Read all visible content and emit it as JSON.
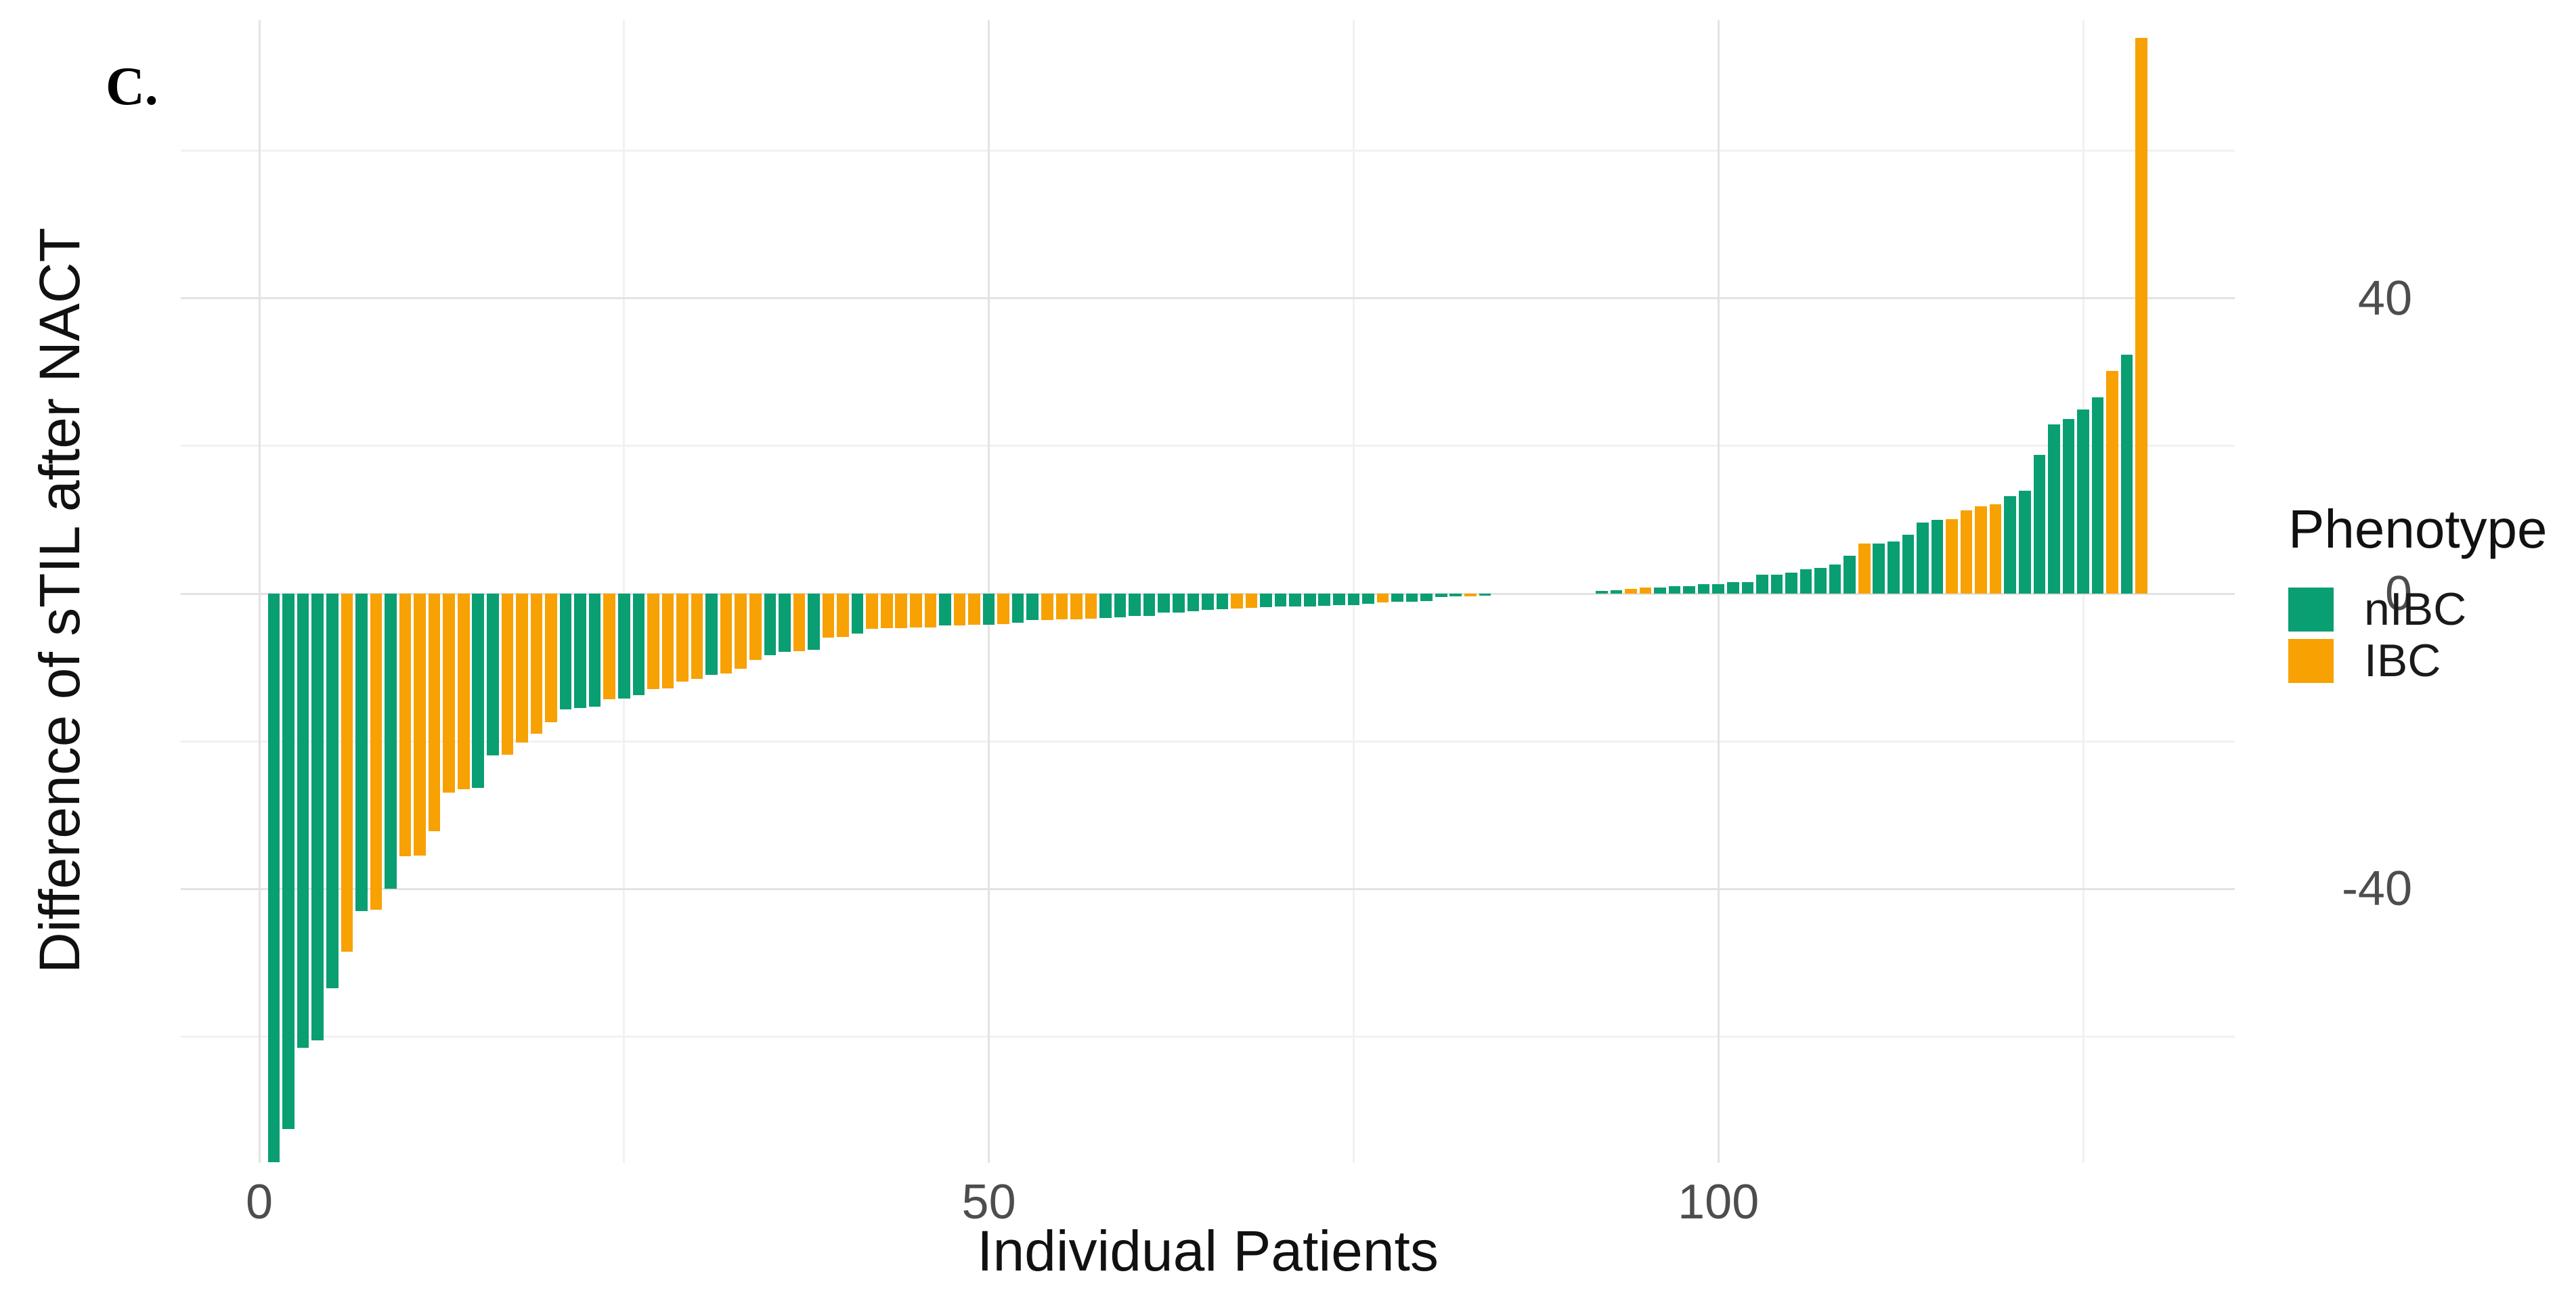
{
  "figure": {
    "panel_label": "C."
  },
  "axes": {
    "x": {
      "title": "Individual Patients",
      "ticks": [
        {
          "value": 0,
          "label": "0"
        },
        {
          "value": 50,
          "label": "50"
        },
        {
          "value": 100,
          "label": "100"
        }
      ],
      "minor_gridlines": [
        25,
        75,
        125
      ],
      "domain": [
        -5.4,
        135.4
      ]
    },
    "y": {
      "title": "Difference of sTIL after NACT",
      "ticks": [
        {
          "value": 40,
          "label": "40"
        },
        {
          "value": 0,
          "label": "0"
        },
        {
          "value": -40,
          "label": "-40"
        }
      ],
      "minor_gridlines": [
        -60,
        -20,
        20,
        60
      ],
      "domain": [
        -77.2,
        77.7
      ]
    }
  },
  "legend": {
    "title": "Phenotype",
    "entries": [
      {
        "label": "nIBC",
        "color": "#0a9e73"
      },
      {
        "label": "IBC",
        "color": "#f7a102"
      }
    ]
  },
  "colors": {
    "nIBC": "#0a9e73",
    "IBC": "#f7a102",
    "grid_major": "#e3e3e3",
    "grid_minor": "#f1f1f1",
    "tick_text": "#4d4d4d",
    "title_text": "#111111"
  },
  "chart_data": {
    "type": "bar",
    "title": "",
    "xlabel": "Individual Patients",
    "ylabel": "Difference of sTIL after NACT",
    "ylim": [
      -77.2,
      77.7
    ],
    "xlim": [
      -5.4,
      135.4
    ],
    "grid": true,
    "legend_position": "right",
    "series_key": "Phenotype",
    "x_is_patient_index_1_to_n": true,
    "n_patients": 129,
    "values": [
      -77,
      -72.5,
      -61.5,
      -60.5,
      -53.5,
      -48.5,
      -43,
      -42.8,
      -40,
      -35.6,
      -35.5,
      -32.2,
      -27,
      -26.5,
      -26.3,
      -21.9,
      -21.8,
      -20.2,
      -19,
      -17.4,
      -15.7,
      -15.5,
      -15.3,
      -14.3,
      -14.2,
      -13.8,
      -12.9,
      -12.8,
      -11.9,
      -11.6,
      -11,
      -10.8,
      -10.2,
      -9,
      -8.3,
      -7.9,
      -7.8,
      -7.6,
      -6,
      -5.9,
      -5.4,
      -4.8,
      -4.7,
      -4.7,
      -4.6,
      -4.6,
      -4.3,
      -4.3,
      -4.2,
      -4.2,
      -4.1,
      -3.9,
      -3.6,
      -3.6,
      -3.5,
      -3.5,
      -3.4,
      -3.3,
      -3.2,
      -3,
      -3,
      -2.6,
      -2.6,
      -2.4,
      -2.2,
      -2.1,
      -2,
      -1.9,
      -1.8,
      -1.75,
      -1.7,
      -1.7,
      -1.65,
      -1.6,
      -1.6,
      -1.4,
      -1.2,
      -1.1,
      -1.1,
      -1,
      -0.5,
      -0.4,
      -0.4,
      -0.3,
      0,
      0,
      0,
      0,
      0,
      0,
      0,
      0.4,
      0.5,
      0.6,
      0.8,
      0.8,
      1,
      1,
      1.3,
      1.3,
      1.6,
      1.6,
      2.6,
      2.6,
      2.8,
      3.3,
      3.5,
      3.9,
      5.1,
      6.8,
      6.8,
      7.1,
      8,
      9.6,
      10,
      10.1,
      11.3,
      11.8,
      12.1,
      13.2,
      13.9,
      18.8,
      22.9,
      23.7,
      24.9,
      26.6,
      30.2,
      32.4,
      75.3
    ],
    "phenotype": [
      "nIBC",
      "nIBC",
      "nIBC",
      "nIBC",
      "nIBC",
      "IBC",
      "nIBC",
      "IBC",
      "nIBC",
      "IBC",
      "IBC",
      "IBC",
      "IBC",
      "IBC",
      "nIBC",
      "nIBC",
      "IBC",
      "IBC",
      "IBC",
      "IBC",
      "nIBC",
      "nIBC",
      "nIBC",
      "IBC",
      "nIBC",
      "nIBC",
      "IBC",
      "IBC",
      "IBC",
      "IBC",
      "nIBC",
      "IBC",
      "IBC",
      "IBC",
      "nIBC",
      "nIBC",
      "IBC",
      "nIBC",
      "IBC",
      "IBC",
      "nIBC",
      "IBC",
      "IBC",
      "IBC",
      "IBC",
      "IBC",
      "nIBC",
      "IBC",
      "IBC",
      "nIBC",
      "IBC",
      "nIBC",
      "nIBC",
      "IBC",
      "IBC",
      "IBC",
      "IBC",
      "nIBC",
      "nIBC",
      "nIBC",
      "nIBC",
      "nIBC",
      "nIBC",
      "nIBC",
      "nIBC",
      "nIBC",
      "IBC",
      "IBC",
      "nIBC",
      "nIBC",
      "nIBC",
      "nIBC",
      "nIBC",
      "nIBC",
      "nIBC",
      "nIBC",
      "IBC",
      "nIBC",
      "nIBC",
      "nIBC",
      "nIBC",
      "nIBC",
      "IBC",
      "nIBC",
      "nIBC",
      "nIBC",
      "IBC",
      "nIBC",
      "nIBC",
      "IBC",
      "nIBC",
      "nIBC",
      "nIBC",
      "IBC",
      "IBC",
      "nIBC",
      "nIBC",
      "nIBC",
      "nIBC",
      "nIBC",
      "nIBC",
      "nIBC",
      "nIBC",
      "nIBC",
      "nIBC",
      "nIBC",
      "nIBC",
      "nIBC",
      "nIBC",
      "IBC",
      "nIBC",
      "nIBC",
      "nIBC",
      "nIBC",
      "nIBC",
      "IBC",
      "IBC",
      "IBC",
      "IBC",
      "nIBC",
      "nIBC",
      "nIBC",
      "nIBC",
      "nIBC",
      "nIBC",
      "nIBC",
      "IBC",
      "nIBC",
      "IBC"
    ]
  }
}
